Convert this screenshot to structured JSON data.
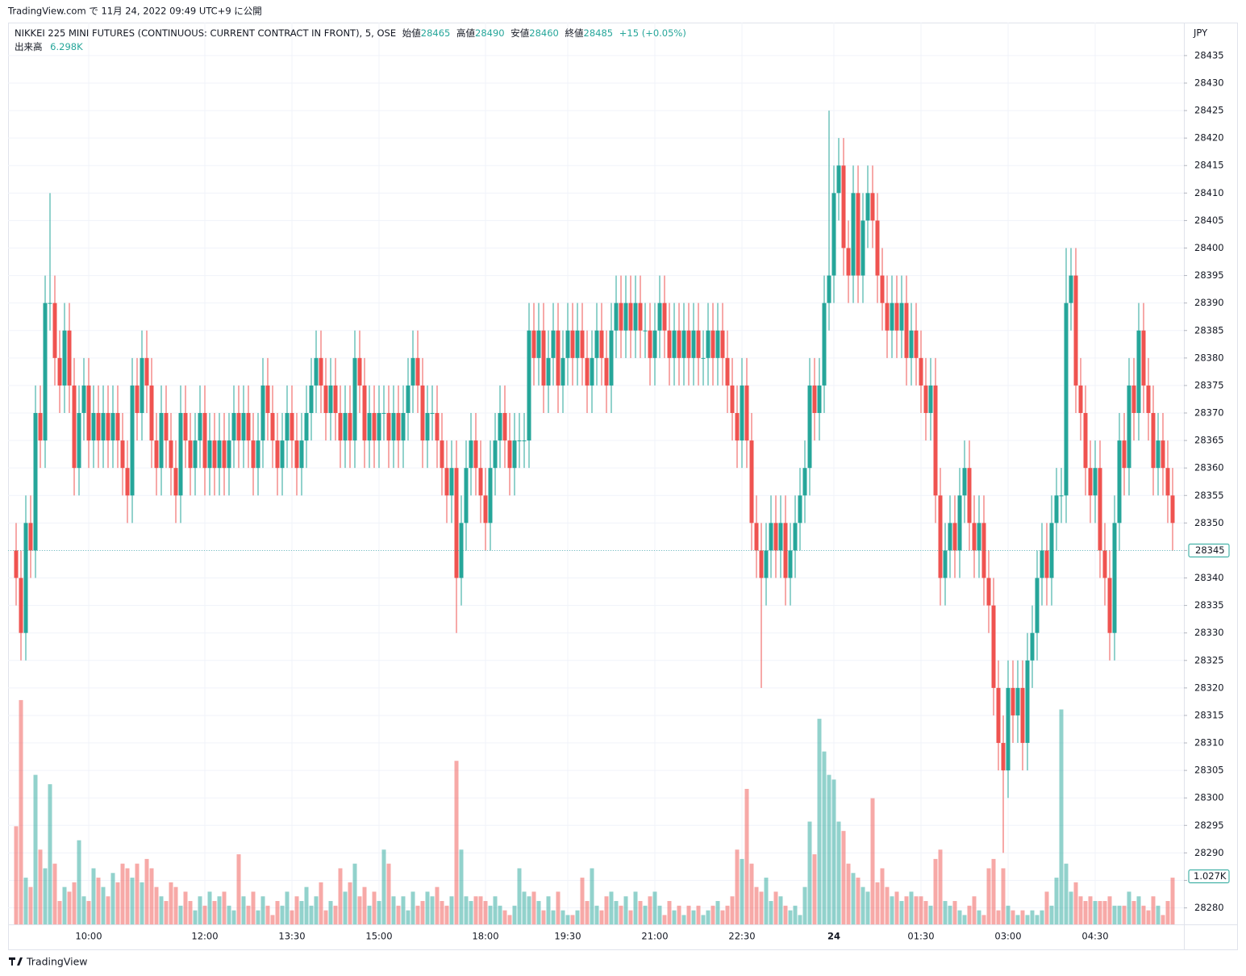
{
  "header": {
    "text": "TradingView.com で 11月 24, 2022 09:49 UTC+9 に公開"
  },
  "chart_data": {
    "type": "candlestick",
    "title": "NIKKEI 225 MINI FUTURES (CONTINUOUS: CURRENT CONTRACT IN FRONT), 5, OSE",
    "legend": {
      "open_label": "始値",
      "open": 28465,
      "high_label": "高値",
      "high": 28490,
      "low_label": "安値",
      "low": 28460,
      "close_label": "終値",
      "close": 28485,
      "change": "+15 (+0.05%)",
      "volume_label": "出来高",
      "volume": "6.298K"
    },
    "currency": "JPY",
    "categories": [
      null,
      null,
      null,
      null,
      null,
      null,
      null,
      null,
      null,
      null,
      null,
      null,
      null,
      null,
      null,
      "10:00",
      null,
      null,
      null,
      null,
      null,
      null,
      null,
      null,
      null,
      null,
      null,
      null,
      null,
      null,
      null,
      null,
      null,
      null,
      null,
      null,
      null,
      null,
      null,
      "12:00",
      null,
      null,
      null,
      null,
      null,
      null,
      null,
      null,
      null,
      null,
      null,
      null,
      null,
      null,
      null,
      null,
      null,
      "13:30",
      null,
      null,
      null,
      null,
      null,
      null,
      null,
      null,
      null,
      null,
      null,
      null,
      null,
      null,
      null,
      null,
      null,
      "15:00",
      null,
      null,
      null,
      null,
      null,
      null,
      null,
      null,
      null,
      null,
      null,
      null,
      null,
      null,
      null,
      null,
      null,
      null,
      null,
      null,
      null,
      "18:00",
      null,
      null,
      null,
      null,
      null,
      null,
      null,
      null,
      null,
      null,
      null,
      null,
      null,
      null,
      null,
      null,
      "19:30",
      null,
      null,
      null,
      null,
      null,
      null,
      null,
      null,
      null,
      null,
      null,
      null,
      null,
      null,
      null,
      null,
      null,
      "21:00",
      null,
      null,
      null,
      null,
      null,
      null,
      null,
      null,
      null,
      null,
      null,
      null,
      null,
      null,
      null,
      null,
      null,
      "22:30",
      null,
      null,
      null,
      null,
      null,
      null,
      null,
      null,
      null,
      null,
      null,
      null,
      null,
      null,
      null,
      null,
      null,
      null,
      "24",
      null,
      null,
      null,
      null,
      null,
      null,
      null,
      null,
      null,
      null,
      null,
      null,
      null,
      null,
      null,
      null,
      null,
      "01:30",
      null,
      null,
      null,
      null,
      null,
      null,
      null,
      null,
      null,
      null,
      null,
      null,
      null,
      null,
      null,
      null,
      null,
      "03:00",
      null,
      null,
      null,
      null,
      null,
      null,
      null,
      null,
      null,
      null,
      null,
      null,
      null,
      null,
      null,
      null,
      null,
      "04:30",
      null,
      null,
      null,
      null,
      null,
      null,
      null,
      null,
      null,
      null,
      null,
      null,
      null,
      null,
      null,
      null
    ],
    "open": [
      28345,
      28340,
      28330,
      28350,
      28345,
      28370,
      28365,
      28390,
      28390,
      28380,
      28375,
      28385,
      28375,
      28360,
      28370,
      28375,
      28365,
      28370,
      28365,
      28370,
      28365,
      28370,
      28365,
      28360,
      28355,
      28375,
      28370,
      28380,
      28375,
      28365,
      28360,
      28370,
      28365,
      28360,
      28355,
      28370,
      28365,
      28360,
      28365,
      28370,
      28360,
      28365,
      28360,
      28365,
      28360,
      28365,
      28370,
      28365,
      28370,
      28365,
      28360,
      28365,
      28375,
      28370,
      28365,
      28360,
      28365,
      28370,
      28365,
      28360,
      28365,
      28370,
      28375,
      28380,
      28375,
      28370,
      28375,
      28370,
      28365,
      28370,
      28365,
      28380,
      28375,
      28365,
      28370,
      28365,
      28370,
      28370,
      28365,
      28370,
      28365,
      28370,
      28375,
      28380,
      28375,
      28365,
      28370,
      28370,
      28365,
      28360,
      28355,
      28360,
      28340,
      28350,
      28360,
      28365,
      28360,
      28355,
      28350,
      28360,
      28365,
      28370,
      28365,
      28360,
      28365,
      28365,
      28365,
      28385,
      28380,
      28385,
      28375,
      28380,
      28385,
      28375,
      28380,
      28385,
      28380,
      28385,
      28380,
      28375,
      28380,
      28385,
      28380,
      28375,
      28385,
      28390,
      28385,
      28390,
      28385,
      28390,
      28385,
      28385,
      28380,
      28385,
      28390,
      28385,
      28380,
      28385,
      28380,
      28385,
      28380,
      28385,
      28380,
      28380,
      28385,
      28380,
      28385,
      28380,
      28375,
      28370,
      28365,
      28375,
      28365,
      28350,
      28345,
      28340,
      28345,
      28350,
      28345,
      28350,
      28340,
      28345,
      28350,
      28355,
      28360,
      28375,
      28370,
      28375,
      28390,
      28395,
      28410,
      28415,
      28400,
      28395,
      28410,
      28395,
      28405,
      28410,
      28405,
      28395,
      28390,
      28385,
      28390,
      28385,
      28390,
      28380,
      28385,
      28380,
      28375,
      28370,
      28375,
      28355,
      28340,
      28345,
      28350,
      28345,
      28355,
      28360,
      28350,
      28345,
      28350,
      28340,
      28335,
      28320,
      28310,
      28305,
      28320,
      28315,
      28320,
      28310,
      28325,
      28330,
      28340,
      28345,
      28340,
      28350,
      28355,
      28355,
      28390,
      28395,
      28375,
      28370,
      28360,
      28355,
      28360,
      28345,
      28340,
      28330,
      28350,
      28365,
      28360,
      28375,
      28370,
      28385,
      28375,
      28370,
      28360,
      28365,
      28360,
      28355
    ],
    "high": [
      28350,
      28345,
      28355,
      28355,
      28375,
      28375,
      28395,
      28410,
      28395,
      28385,
      28390,
      28390,
      28380,
      28375,
      28380,
      28380,
      28375,
      28375,
      28375,
      28375,
      28375,
      28375,
      28370,
      28365,
      28380,
      28380,
      28385,
      28385,
      28380,
      28370,
      28375,
      28375,
      28370,
      28365,
      28375,
      28375,
      28370,
      28370,
      28375,
      28375,
      28370,
      28370,
      28370,
      28370,
      28370,
      28375,
      28375,
      28375,
      28375,
      28370,
      28370,
      28380,
      28380,
      28375,
      28370,
      28370,
      28375,
      28375,
      28370,
      28370,
      28375,
      28380,
      28385,
      28385,
      28380,
      28380,
      28380,
      28375,
      28375,
      28375,
      28385,
      28385,
      28380,
      28375,
      28375,
      28375,
      28375,
      28375,
      28375,
      28375,
      28375,
      28380,
      28385,
      28385,
      28380,
      28375,
      28375,
      28375,
      28370,
      28365,
      28365,
      28365,
      28355,
      28365,
      28370,
      28370,
      28365,
      28360,
      28365,
      28370,
      28375,
      28375,
      28370,
      28370,
      28370,
      28370,
      28390,
      28390,
      28390,
      28390,
      28385,
      28390,
      28390,
      28385,
      28390,
      28390,
      28390,
      28390,
      28385,
      28385,
      28390,
      28390,
      28385,
      28390,
      28395,
      28395,
      28395,
      28395,
      28395,
      28395,
      28390,
      28390,
      28390,
      28395,
      28395,
      28390,
      28390,
      28390,
      28390,
      28390,
      28390,
      28390,
      28385,
      28390,
      28390,
      28390,
      28390,
      28385,
      28380,
      28375,
      28380,
      28380,
      28370,
      28355,
      28350,
      28350,
      28355,
      28355,
      28355,
      28355,
      28350,
      28355,
      28360,
      28365,
      28380,
      28380,
      28380,
      28395,
      28425,
      28415,
      28420,
      28420,
      28405,
      28415,
      28415,
      28410,
      28415,
      28415,
      28410,
      28400,
      28395,
      28395,
      28395,
      28395,
      28395,
      28390,
      28390,
      28385,
      28380,
      28380,
      28380,
      28360,
      28350,
      28355,
      28355,
      28360,
      28365,
      28365,
      28355,
      28355,
      28355,
      28345,
      28340,
      28325,
      28315,
      28325,
      28325,
      28325,
      28325,
      28330,
      28335,
      28345,
      28350,
      28350,
      28355,
      28360,
      28360,
      28400,
      28400,
      28400,
      28380,
      28375,
      28365,
      28365,
      28365,
      28350,
      28345,
      28355,
      28370,
      28370,
      28380,
      28380,
      28390,
      28390,
      28380,
      28375,
      28370,
      28370,
      28365,
      28360
    ],
    "low": [
      28335,
      28325,
      28325,
      28340,
      28340,
      28360,
      28360,
      28385,
      28375,
      28370,
      28370,
      28370,
      28355,
      28355,
      28365,
      28360,
      28360,
      28360,
      28360,
      28360,
      28360,
      28360,
      28355,
      28350,
      28350,
      28365,
      28365,
      28370,
      28360,
      28355,
      28355,
      28360,
      28355,
      28350,
      28350,
      28360,
      28355,
      28355,
      28360,
      28355,
      28355,
      28355,
      28355,
      28355,
      28355,
      28360,
      28360,
      28360,
      28360,
      28355,
      28355,
      28360,
      28365,
      28360,
      28355,
      28355,
      28360,
      28360,
      28355,
      28355,
      28360,
      28365,
      28370,
      28370,
      28365,
      28365,
      28365,
      28360,
      28360,
      28360,
      28360,
      28370,
      28360,
      28360,
      28360,
      28360,
      28365,
      28360,
      28360,
      28360,
      28360,
      28365,
      28370,
      28370,
      28360,
      28360,
      28365,
      28360,
      28355,
      28350,
      28350,
      28330,
      28335,
      28345,
      28355,
      28355,
      28350,
      28345,
      28345,
      28355,
      28360,
      28360,
      28355,
      28355,
      28360,
      28360,
      28360,
      28375,
      28375,
      28370,
      28370,
      28375,
      28370,
      28370,
      28375,
      28375,
      28375,
      28375,
      28370,
      28370,
      28375,
      28375,
      28370,
      28370,
      28380,
      28380,
      28380,
      28380,
      28380,
      28380,
      28380,
      28375,
      28375,
      28380,
      28380,
      28375,
      28375,
      28375,
      28375,
      28375,
      28375,
      28375,
      28375,
      28375,
      28375,
      28375,
      28375,
      28370,
      28365,
      28360,
      28360,
      28360,
      28345,
      28340,
      28320,
      28335,
      28340,
      28340,
      28340,
      28335,
      28335,
      28340,
      28345,
      28350,
      28355,
      28365,
      28365,
      28370,
      28385,
      28390,
      28405,
      28395,
      28390,
      28390,
      28390,
      28390,
      28400,
      28400,
      28390,
      28385,
      28380,
      28380,
      28380,
      28380,
      28375,
      28375,
      28375,
      28370,
      28365,
      28365,
      28350,
      28335,
      28335,
      28340,
      28340,
      28340,
      28350,
      28345,
      28340,
      28340,
      28335,
      28330,
      28315,
      28305,
      28290,
      28300,
      28310,
      28310,
      28305,
      28305,
      28320,
      28325,
      28335,
      28335,
      28335,
      28345,
      28350,
      28350,
      28385,
      28370,
      28365,
      28355,
      28350,
      28350,
      28340,
      28335,
      28325,
      28325,
      28345,
      28355,
      28355,
      28365,
      28365,
      28370,
      28365,
      28355,
      28355,
      28355,
      28350,
      28345
    ],
    "close": [
      28340,
      28330,
      28350,
      28345,
      28370,
      28365,
      28390,
      28390,
      28380,
      28375,
      28385,
      28375,
      28360,
      28370,
      28375,
      28365,
      28370,
      28365,
      28370,
      28365,
      28370,
      28365,
      28360,
      28355,
      28375,
      28370,
      28380,
      28375,
      28365,
      28360,
      28370,
      28365,
      28360,
      28355,
      28370,
      28365,
      28360,
      28365,
      28370,
      28360,
      28365,
      28360,
      28365,
      28360,
      28365,
      28370,
      28365,
      28370,
      28365,
      28360,
      28365,
      28375,
      28370,
      28365,
      28360,
      28365,
      28370,
      28365,
      28360,
      28365,
      28370,
      28375,
      28380,
      28375,
      28370,
      28375,
      28370,
      28365,
      28370,
      28365,
      28380,
      28375,
      28365,
      28370,
      28365,
      28370,
      28370,
      28365,
      28370,
      28365,
      28370,
      28375,
      28380,
      28375,
      28365,
      28370,
      28370,
      28365,
      28360,
      28355,
      28360,
      28340,
      28350,
      28360,
      28365,
      28360,
      28355,
      28350,
      28360,
      28365,
      28370,
      28365,
      28360,
      28365,
      28365,
      28365,
      28385,
      28380,
      28385,
      28375,
      28380,
      28385,
      28375,
      28380,
      28385,
      28380,
      28385,
      28380,
      28375,
      28380,
      28385,
      28380,
      28375,
      28385,
      28390,
      28385,
      28390,
      28385,
      28390,
      28385,
      28385,
      28380,
      28385,
      28390,
      28385,
      28380,
      28385,
      28380,
      28385,
      28380,
      28385,
      28380,
      28380,
      28385,
      28380,
      28385,
      28380,
      28375,
      28370,
      28365,
      28375,
      28365,
      28350,
      28345,
      28340,
      28345,
      28350,
      28345,
      28350,
      28340,
      28345,
      28350,
      28355,
      28360,
      28375,
      28370,
      28375,
      28390,
      28395,
      28410,
      28415,
      28400,
      28395,
      28410,
      28395,
      28405,
      28410,
      28405,
      28395,
      28390,
      28385,
      28390,
      28385,
      28390,
      28380,
      28385,
      28380,
      28375,
      28370,
      28375,
      28355,
      28340,
      28345,
      28350,
      28345,
      28355,
      28360,
      28350,
      28345,
      28350,
      28340,
      28335,
      28320,
      28310,
      28305,
      28320,
      28315,
      28320,
      28310,
      28325,
      28330,
      28340,
      28345,
      28340,
      28350,
      28355,
      28355,
      28390,
      28395,
      28375,
      28370,
      28360,
      28355,
      28360,
      28345,
      28340,
      28330,
      28350,
      28365,
      28360,
      28375,
      28370,
      28385,
      28375,
      28370,
      28360,
      28365,
      28360,
      28355,
      28350
    ],
    "volume": [
      2.1,
      4.8,
      1.0,
      0.8,
      3.2,
      1.6,
      1.2,
      3.0,
      1.3,
      0.5,
      0.8,
      0.7,
      0.9,
      1.8,
      0.6,
      0.5,
      1.2,
      1.0,
      0.8,
      0.6,
      1.1,
      0.9,
      1.3,
      1.2,
      1.0,
      1.3,
      0.9,
      1.4,
      1.2,
      0.8,
      0.6,
      0.5,
      0.9,
      0.8,
      0.4,
      0.7,
      0.5,
      0.3,
      0.6,
      0.4,
      0.7,
      0.5,
      0.6,
      0.7,
      0.4,
      0.3,
      1.5,
      0.6,
      0.4,
      0.7,
      0.3,
      0.6,
      0.4,
      0.2,
      0.5,
      0.4,
      0.7,
      0.3,
      0.6,
      0.5,
      0.8,
      0.4,
      0.6,
      0.9,
      0.3,
      0.5,
      0.4,
      1.2,
      0.7,
      0.9,
      1.3,
      0.6,
      0.8,
      0.4,
      0.7,
      0.5,
      1.6,
      1.3,
      0.6,
      0.4,
      0.6,
      0.3,
      0.7,
      0.4,
      0.5,
      0.7,
      0.6,
      0.8,
      0.5,
      0.4,
      0.6,
      3.5,
      1.6,
      0.6,
      0.5,
      0.6,
      0.6,
      0.5,
      0.4,
      0.6,
      0.4,
      0.3,
      0.2,
      0.4,
      1.2,
      0.7,
      0.6,
      0.7,
      0.5,
      0.3,
      0.6,
      0.3,
      0.7,
      0.3,
      0.2,
      0.2,
      0.3,
      1.0,
      0.5,
      1.2,
      0.4,
      0.3,
      0.6,
      0.7,
      0.5,
      0.4,
      0.6,
      0.3,
      0.7,
      0.5,
      0.4,
      0.6,
      0.7,
      0.4,
      0.2,
      0.5,
      0.3,
      0.4,
      0.2,
      0.4,
      0.3,
      0.4,
      0.2,
      0.3,
      0.4,
      0.5,
      0.3,
      0.4,
      0.6,
      1.6,
      1.4,
      2.9,
      1.3,
      0.8,
      0.7,
      1.0,
      0.5,
      0.7,
      0.6,
      0.4,
      0.3,
      0.4,
      0.2,
      0.8,
      2.2,
      1.5,
      4.4,
      3.7,
      3.2,
      3.1,
      2.2,
      2.0,
      1.3,
      1.1,
      1.0,
      0.8,
      0.7,
      2.7,
      0.9,
      1.2,
      0.8,
      0.6,
      0.7,
      0.5,
      0.6,
      0.7,
      0.6,
      0.6,
      0.5,
      0.4,
      1.4,
      1.6,
      0.5,
      0.4,
      0.5,
      0.3,
      0.2,
      0.4,
      0.6,
      0.3,
      0.2,
      1.2,
      1.4,
      0.3,
      1.2,
      0.4,
      0.3,
      0.2,
      0.3,
      0.2,
      0.3,
      0.2,
      0.3,
      0.7,
      0.4,
      1.0,
      4.6,
      1.3,
      0.7,
      0.9,
      0.6,
      0.5,
      0.6,
      0.5,
      0.5,
      0.5,
      0.6,
      0.4,
      0.4,
      0.4,
      0.7,
      0.5,
      0.6,
      0.4,
      0.3,
      0.6,
      0.4,
      0.2,
      0.5,
      1.0
    ],
    "up_color": "#26a69a",
    "down_color": "#ef5350",
    "ylim": [
      28277,
      28441
    ],
    "yticks": [
      28280,
      28285,
      28290,
      28295,
      28300,
      28305,
      28310,
      28315,
      28320,
      28325,
      28330,
      28335,
      28340,
      28345,
      28350,
      28355,
      28360,
      28365,
      28370,
      28375,
      28380,
      28385,
      28390,
      28395,
      28400,
      28405,
      28410,
      28415,
      28420,
      28425,
      28430,
      28435
    ],
    "volume_ylim": [
      0,
      19.3
    ],
    "last_price": 28345,
    "last_volume": {
      "value": 1.027,
      "label": "1.027K"
    },
    "grid": true
  },
  "footer": {
    "brand": "TradingView"
  }
}
